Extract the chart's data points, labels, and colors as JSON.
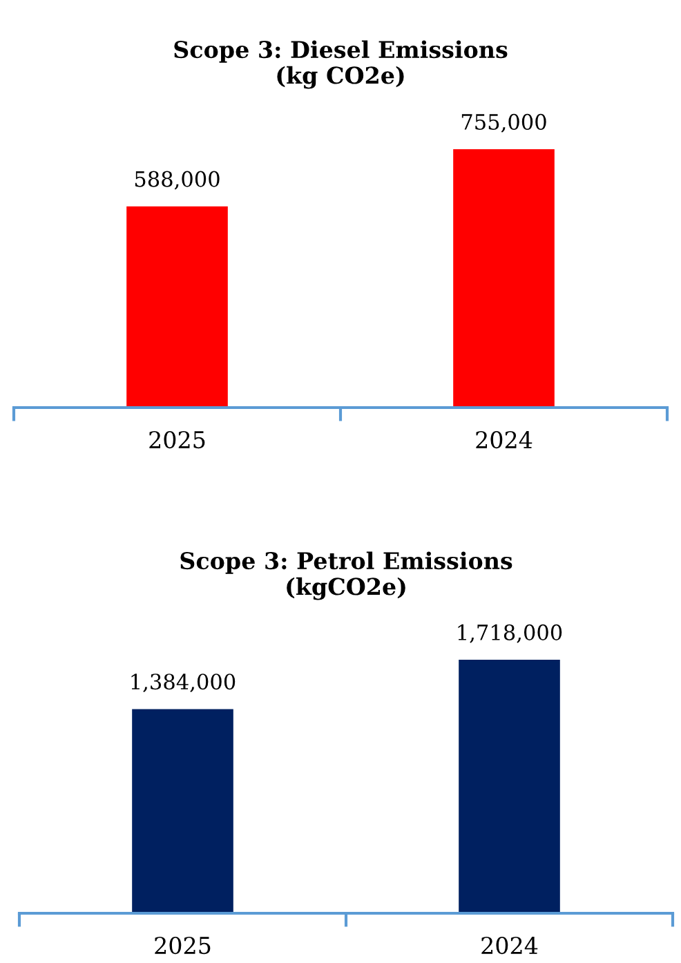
{
  "chart_data": [
    {
      "type": "bar",
      "title": "Scope 3: Diesel Emissions\n(kg CO2e)",
      "categories": [
        "2025",
        "2024"
      ],
      "values": [
        588000,
        755000
      ],
      "value_labels": [
        "588,000",
        "755,000"
      ],
      "color": "#ff0000",
      "grid": false,
      "legend": false,
      "tick_labels": "x"
    },
    {
      "type": "bar",
      "title": "Scope 3: Petrol Emissions\n(kgCO2e)",
      "categories": [
        "2025",
        "2024"
      ],
      "values": [
        1384000,
        1718000
      ],
      "value_labels": [
        "1,384,000",
        "1,718,000"
      ],
      "color": "#002060",
      "grid": false,
      "legend": false,
      "tick_labels": "x"
    }
  ]
}
